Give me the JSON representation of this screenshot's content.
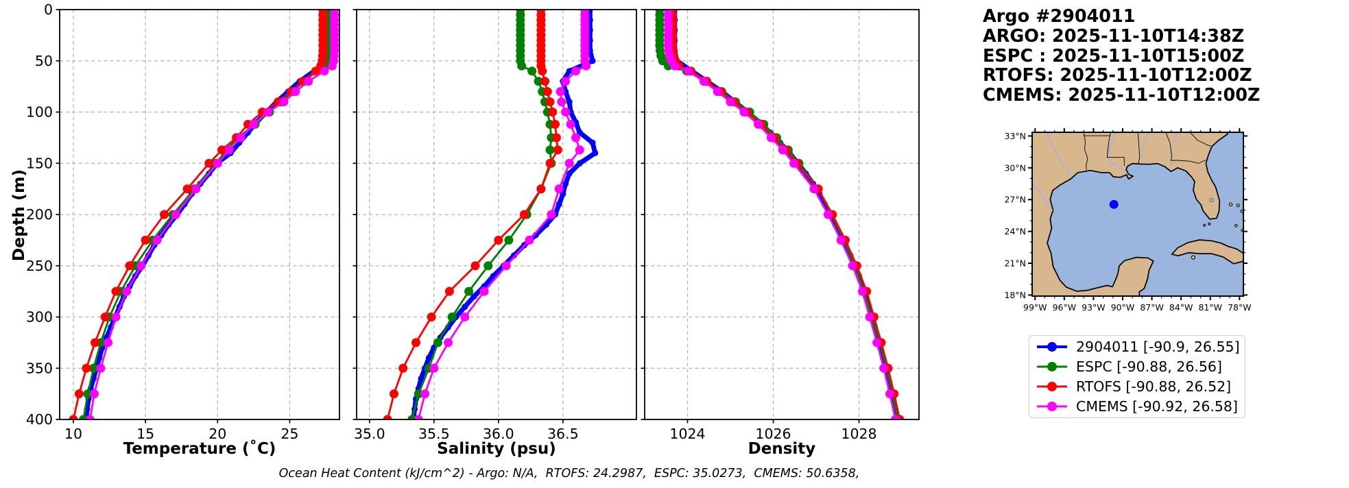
{
  "header": {
    "lines": [
      "Argo #2904011",
      "ARGO: 2025-11-10T14:38Z",
      "ESPC : 2025-11-10T15:00Z",
      "RTOFS: 2025-11-10T12:00Z",
      "CMEMS: 2025-11-10T12:00Z"
    ]
  },
  "caption": "Ocean Heat Content (kJ/cm^2) - Argo: N/A,  RTOFS: 24.2987,  ESPC: 35.0273,  CMEMS: 50.6358,",
  "ylabel": "Depth (m)",
  "colors": {
    "argo": "#0000ff",
    "espc": "#008000",
    "rtofs": "#ff0000",
    "cmems": "#ff00ff",
    "land": "#d8b78f",
    "water": "#9ab5de",
    "grid": "#b0b0b0"
  },
  "legend": {
    "items": [
      {
        "label": "2904011 [-90.9, 26.55]",
        "color": "#0000ff"
      },
      {
        "label": "ESPC [-90.88, 26.56]",
        "color": "#008000"
      },
      {
        "label": "RTOFS [-90.88, 26.52]",
        "color": "#ff0000"
      },
      {
        "label": "CMEMS [-90.92, 26.58]",
        "color": "#ff00ff"
      }
    ]
  },
  "map": {
    "marker": {
      "lon": -90.9,
      "lat": 26.55,
      "color": "#0000ff"
    },
    "lat_ticks": [
      {
        "label": "33°N",
        "deg": 33
      },
      {
        "label": "30°N",
        "deg": 30
      },
      {
        "label": "27°N",
        "deg": 27
      },
      {
        "label": "24°N",
        "deg": 24
      },
      {
        "label": "21°N",
        "deg": 21
      },
      {
        "label": "18°N",
        "deg": 18
      }
    ],
    "lon_ticks": [
      {
        "label": "99°W",
        "deg": -99
      },
      {
        "label": "96°W",
        "deg": -96
      },
      {
        "label": "93°W",
        "deg": -93
      },
      {
        "label": "90°W",
        "deg": -90
      },
      {
        "label": "87°W",
        "deg": -87
      },
      {
        "label": "84°W",
        "deg": -84
      },
      {
        "label": "81°W",
        "deg": -81
      },
      {
        "label": "78°W",
        "deg": -78
      }
    ]
  },
  "chart_data": [
    {
      "type": "line",
      "xlabel": "Temperature (˚C)",
      "ylabel": "Depth (m)",
      "xlim": [
        9.05,
        28.45
      ],
      "xticks": [
        10,
        15,
        20,
        25
      ],
      "xtick_labels": [
        "10",
        "15",
        "20",
        "25"
      ],
      "ylim": [
        0,
        400
      ],
      "yticks": [
        0,
        50,
        100,
        150,
        200,
        250,
        300,
        350,
        400
      ],
      "ytick_labels": [
        "0",
        "50",
        "100",
        "150",
        "200",
        "250",
        "300",
        "350",
        "400"
      ],
      "grid": true,
      "series": [
        {
          "name": "2904011",
          "color": "#0000ff",
          "depths": [
            0,
            10,
            20,
            30,
            40,
            50,
            60,
            70,
            80,
            90,
            100,
            110,
            120,
            130,
            140,
            150,
            160,
            170,
            180,
            190,
            200,
            210,
            220,
            230,
            240,
            250,
            260,
            270,
            280,
            290,
            300,
            310,
            320,
            330,
            340,
            350,
            360,
            370,
            380,
            390,
            400
          ],
          "values": [
            28.0,
            28.0,
            28.0,
            28.0,
            27.95,
            27.85,
            26.7,
            25.7,
            24.9,
            24.1,
            23.4,
            22.7,
            22.1,
            21.5,
            20.9,
            19.95,
            19.4,
            18.8,
            18.2,
            17.7,
            17.2,
            16.6,
            16.1,
            15.6,
            15.2,
            14.8,
            14.3,
            13.9,
            13.5,
            13.2,
            12.9,
            12.6,
            12.3,
            12.0,
            11.8,
            11.6,
            11.4,
            11.2,
            11.05,
            10.95,
            10.9
          ]
        },
        {
          "name": "ESPC",
          "color": "#008000",
          "depths": [
            0,
            5,
            10,
            15,
            20,
            25,
            30,
            35,
            40,
            45,
            50,
            55,
            60,
            70,
            80,
            90,
            100,
            112,
            125,
            137,
            150,
            175,
            200,
            225,
            250,
            275,
            300,
            325,
            350,
            375,
            400
          ],
          "values": [
            27.75,
            27.75,
            27.75,
            27.75,
            27.75,
            27.75,
            27.75,
            27.75,
            27.75,
            27.74,
            27.72,
            27.5,
            26.9,
            26.0,
            25.2,
            24.4,
            23.6,
            22.6,
            21.4,
            20.6,
            19.9,
            18.4,
            16.9,
            15.5,
            14.3,
            13.3,
            12.5,
            11.9,
            11.4,
            11.0,
            10.7
          ]
        },
        {
          "name": "RTOFS",
          "color": "#ff0000",
          "depths": [
            0,
            5,
            10,
            15,
            20,
            25,
            30,
            35,
            40,
            45,
            50,
            55,
            60,
            70,
            80,
            90,
            100,
            112,
            125,
            137,
            150,
            175,
            200,
            225,
            250,
            275,
            300,
            325,
            350,
            375,
            400
          ],
          "values": [
            27.3,
            27.3,
            27.3,
            27.3,
            27.3,
            27.3,
            27.3,
            27.3,
            27.3,
            27.28,
            27.25,
            27.15,
            26.8,
            25.9,
            25.1,
            24.2,
            23.1,
            22.1,
            21.3,
            20.3,
            19.4,
            17.9,
            16.3,
            15.0,
            13.9,
            12.95,
            12.2,
            11.5,
            10.9,
            10.4,
            10.0
          ]
        },
        {
          "name": "CMEMS",
          "color": "#ff00ff",
          "depths": [
            0,
            5,
            10,
            15,
            20,
            25,
            30,
            35,
            40,
            45,
            50,
            55,
            60,
            70,
            80,
            90,
            100,
            112,
            125,
            137,
            150,
            175,
            200,
            225,
            250,
            275,
            300,
            325,
            350,
            375,
            400
          ],
          "values": [
            28.1,
            28.1,
            28.1,
            28.1,
            28.1,
            28.1,
            28.1,
            28.1,
            28.1,
            28.08,
            28.05,
            27.95,
            27.4,
            26.3,
            25.4,
            24.6,
            23.5,
            22.5,
            21.6,
            20.8,
            20.0,
            18.5,
            17.1,
            15.8,
            14.7,
            13.7,
            12.95,
            12.4,
            11.9,
            11.45,
            11.15
          ]
        }
      ]
    },
    {
      "type": "line",
      "xlabel": "Salinity (psu)",
      "ylabel": "Depth (m)",
      "xlim": [
        34.9,
        37.07
      ],
      "xticks": [
        35.0,
        35.5,
        36.0,
        36.5
      ],
      "xtick_labels": [
        "35.0",
        "35.5",
        "36.0",
        "36.5"
      ],
      "ylim": [
        0,
        400
      ],
      "yticks": [
        0,
        50,
        100,
        150,
        200,
        250,
        300,
        350,
        400
      ],
      "grid": true,
      "series": [
        {
          "name": "2904011",
          "color": "#0000ff",
          "depths": [
            0,
            10,
            20,
            30,
            40,
            50,
            60,
            70,
            80,
            90,
            100,
            110,
            120,
            130,
            140,
            150,
            160,
            170,
            180,
            190,
            200,
            210,
            220,
            230,
            240,
            250,
            260,
            270,
            280,
            290,
            300,
            310,
            320,
            330,
            340,
            350,
            360,
            370,
            380,
            390,
            400
          ],
          "values": [
            36.71,
            36.71,
            36.71,
            36.71,
            36.71,
            36.73,
            36.55,
            36.5,
            36.52,
            36.55,
            36.56,
            36.6,
            36.63,
            36.73,
            36.75,
            36.63,
            36.55,
            36.52,
            36.5,
            36.47,
            36.44,
            36.37,
            36.29,
            36.2,
            36.12,
            36.04,
            35.96,
            35.89,
            35.81,
            35.74,
            35.67,
            35.61,
            35.55,
            35.5,
            35.46,
            35.43,
            35.4,
            35.38,
            35.36,
            35.35,
            35.34
          ]
        },
        {
          "name": "ESPC",
          "color": "#008000",
          "depths": [
            0,
            5,
            10,
            15,
            20,
            25,
            30,
            35,
            40,
            45,
            50,
            55,
            60,
            70,
            80,
            90,
            100,
            112,
            125,
            137,
            150,
            175,
            200,
            225,
            250,
            275,
            300,
            325,
            350,
            375,
            400
          ],
          "values": [
            36.17,
            36.17,
            36.17,
            36.17,
            36.17,
            36.17,
            36.17,
            36.17,
            36.17,
            36.17,
            36.17,
            36.18,
            36.26,
            36.31,
            36.34,
            36.36,
            36.38,
            36.4,
            36.41,
            36.4,
            36.41,
            36.33,
            36.22,
            36.08,
            35.92,
            35.77,
            35.64,
            35.53,
            35.46,
            35.38,
            35.33
          ]
        },
        {
          "name": "RTOFS",
          "color": "#ff0000",
          "depths": [
            0,
            5,
            10,
            15,
            20,
            25,
            30,
            35,
            40,
            45,
            50,
            55,
            60,
            70,
            80,
            90,
            100,
            112,
            125,
            137,
            150,
            175,
            200,
            225,
            250,
            275,
            300,
            325,
            350,
            375,
            400
          ],
          "values": [
            36.33,
            36.33,
            36.33,
            36.33,
            36.33,
            36.33,
            36.33,
            36.33,
            36.33,
            36.33,
            36.33,
            36.33,
            36.34,
            36.36,
            36.38,
            36.4,
            36.42,
            36.44,
            36.45,
            36.46,
            36.4,
            36.33,
            36.2,
            36.0,
            35.82,
            35.62,
            35.48,
            35.36,
            35.26,
            35.19,
            35.14
          ]
        },
        {
          "name": "CMEMS",
          "color": "#ff00ff",
          "depths": [
            0,
            5,
            10,
            15,
            20,
            25,
            30,
            35,
            40,
            45,
            50,
            55,
            60,
            70,
            80,
            90,
            100,
            112,
            125,
            137,
            150,
            175,
            200,
            225,
            250,
            275,
            300,
            325,
            350,
            375,
            400
          ],
          "values": [
            36.67,
            36.67,
            36.67,
            36.67,
            36.67,
            36.67,
            36.67,
            36.67,
            36.67,
            36.67,
            36.67,
            36.68,
            36.6,
            36.52,
            36.48,
            36.49,
            36.52,
            36.56,
            36.6,
            36.63,
            36.55,
            36.47,
            36.41,
            36.24,
            36.06,
            35.89,
            35.74,
            35.61,
            35.5,
            35.43,
            35.38
          ]
        }
      ]
    },
    {
      "type": "line",
      "xlabel": "Density",
      "ylabel": "Depth (m)",
      "xlim": [
        1023.0,
        1029.4
      ],
      "xticks": [
        1024,
        1026,
        1028
      ],
      "xtick_labels": [
        "1024",
        "1026",
        "1028"
      ],
      "ylim": [
        0,
        400
      ],
      "yticks": [
        0,
        50,
        100,
        150,
        200,
        250,
        300,
        350,
        400
      ],
      "grid": true,
      "series": [
        {
          "name": "2904011",
          "color": "#0000ff",
          "depths": [
            0,
            10,
            20,
            30,
            40,
            50,
            60,
            70,
            80,
            90,
            100,
            110,
            120,
            130,
            140,
            150,
            160,
            170,
            180,
            190,
            200,
            210,
            220,
            230,
            240,
            250,
            260,
            270,
            280,
            290,
            300,
            310,
            320,
            330,
            340,
            350,
            360,
            370,
            380,
            390,
            400
          ],
          "values": [
            1023.7,
            1023.7,
            1023.7,
            1023.7,
            1023.7,
            1023.75,
            1024.1,
            1024.45,
            1024.8,
            1025.1,
            1025.4,
            1025.68,
            1025.93,
            1026.16,
            1026.38,
            1026.58,
            1026.76,
            1026.93,
            1027.08,
            1027.2,
            1027.32,
            1027.45,
            1027.57,
            1027.69,
            1027.8,
            1027.9,
            1028.0,
            1028.08,
            1028.16,
            1028.23,
            1028.3,
            1028.37,
            1028.44,
            1028.5,
            1028.56,
            1028.62,
            1028.68,
            1028.74,
            1028.8,
            1028.85,
            1028.9
          ]
        },
        {
          "name": "ESPC",
          "color": "#008000",
          "depths": [
            0,
            5,
            10,
            15,
            20,
            25,
            30,
            35,
            40,
            45,
            50,
            55,
            60,
            70,
            80,
            90,
            100,
            112,
            125,
            137,
            150,
            175,
            200,
            225,
            250,
            275,
            300,
            325,
            350,
            375,
            400
          ],
          "values": [
            1023.35,
            1023.35,
            1023.35,
            1023.35,
            1023.35,
            1023.35,
            1023.35,
            1023.35,
            1023.36,
            1023.38,
            1023.42,
            1023.55,
            1023.98,
            1024.42,
            1024.8,
            1025.12,
            1025.45,
            1025.78,
            1026.08,
            1026.35,
            1026.6,
            1027.05,
            1027.35,
            1027.65,
            1027.9,
            1028.12,
            1028.3,
            1028.48,
            1028.64,
            1028.78,
            1028.9
          ]
        },
        {
          "name": "RTOFS",
          "color": "#ff0000",
          "depths": [
            0,
            5,
            10,
            15,
            20,
            25,
            30,
            35,
            40,
            45,
            50,
            55,
            60,
            70,
            80,
            90,
            100,
            112,
            125,
            137,
            150,
            175,
            200,
            225,
            250,
            275,
            300,
            325,
            350,
            375,
            400
          ],
          "values": [
            1023.65,
            1023.65,
            1023.65,
            1023.65,
            1023.65,
            1023.65,
            1023.65,
            1023.65,
            1023.66,
            1023.68,
            1023.72,
            1023.8,
            1024.08,
            1024.45,
            1024.78,
            1025.08,
            1025.38,
            1025.72,
            1026.02,
            1026.3,
            1026.55,
            1027.05,
            1027.38,
            1027.68,
            1027.95,
            1028.18,
            1028.35,
            1028.52,
            1028.68,
            1028.82,
            1028.95
          ]
        },
        {
          "name": "CMEMS",
          "color": "#ff00ff",
          "depths": [
            0,
            5,
            10,
            15,
            20,
            25,
            30,
            35,
            40,
            45,
            50,
            55,
            60,
            70,
            80,
            90,
            100,
            112,
            125,
            137,
            150,
            175,
            200,
            225,
            250,
            275,
            300,
            325,
            350,
            375,
            400
          ],
          "values": [
            1023.55,
            1023.55,
            1023.55,
            1023.55,
            1023.55,
            1023.55,
            1023.55,
            1023.55,
            1023.56,
            1023.58,
            1023.62,
            1023.7,
            1024.02,
            1024.38,
            1024.7,
            1025.0,
            1025.32,
            1025.65,
            1025.95,
            1026.22,
            1026.48,
            1026.95,
            1027.28,
            1027.58,
            1027.85,
            1028.08,
            1028.25,
            1028.42,
            1028.58,
            1028.72,
            1028.85
          ]
        }
      ]
    }
  ]
}
